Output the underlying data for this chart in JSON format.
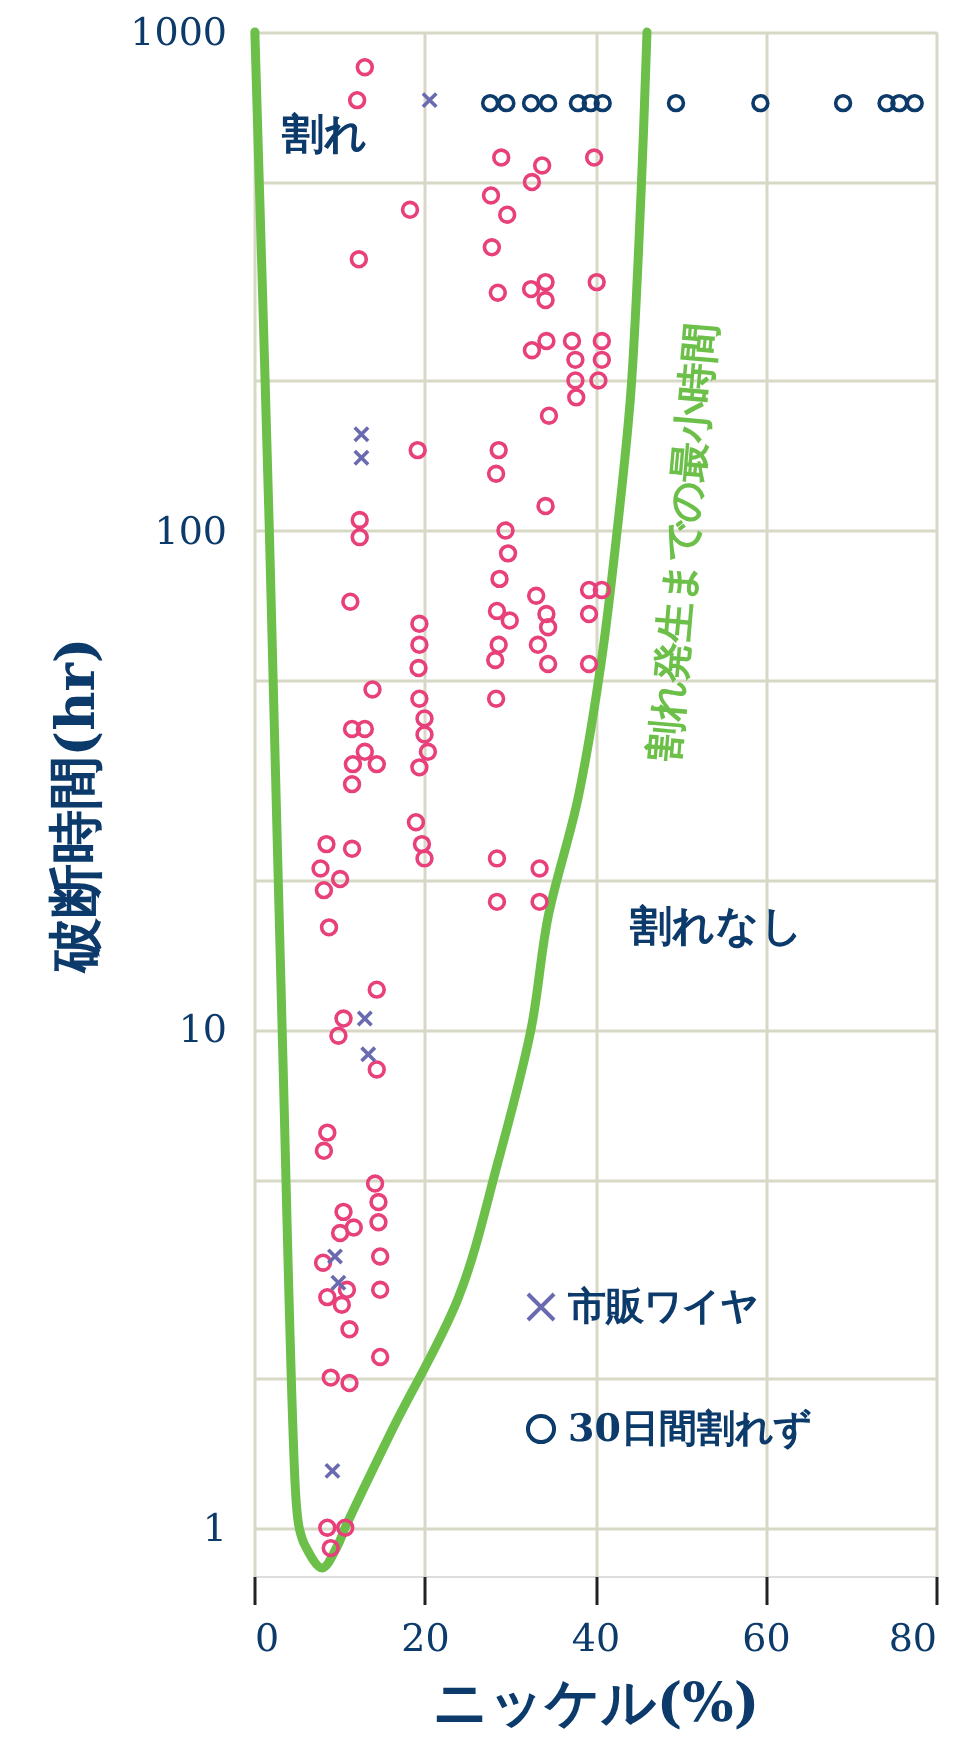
{
  "chart_data": {
    "type": "scatter",
    "xlabel": "ニッケル(%)",
    "ylabel": "破断時間(hr)",
    "xlim": [
      0,
      80
    ],
    "xticks": [
      0,
      20,
      40,
      60,
      80
    ],
    "ylim": [
      0.8,
      1000
    ],
    "yticks": [
      1,
      {
        "value": 2,
        "label": null
      },
      {
        "value": 5,
        "label": null
      },
      10,
      {
        "value": 20,
        "label": null
      },
      {
        "value": 50,
        "label": null
      },
      100,
      {
        "value": 200,
        "label": null
      },
      {
        "value": 500,
        "label": null
      },
      1000
    ],
    "log": "y",
    "grid": true,
    "legend": "bottom right",
    "annotations": [
      "割れ",
      "割れなし"
    ],
    "series": [
      {
        "color": "#e8407a",
        "marker": "circle",
        "x": [
          13.0,
          12.1,
          29.0,
          33.8,
          32.6,
          39.9,
          27.8,
          18.3,
          29.7,
          27.9,
          12.3,
          28.6,
          32.5,
          34.2,
          34.2,
          40.2,
          32.6,
          34.3,
          37.3,
          40.8,
          37.7,
          40.8,
          37.7,
          40.4,
          37.8,
          34.6,
          19.2,
          28.7,
          28.4,
          34.2,
          12.4,
          12.4,
          29.5,
          29.8,
          28.8,
          11.3,
          33.1,
          39.3,
          40.8,
          28.5,
          30.0,
          34.3,
          34.5,
          39.3,
          19.4,
          19.4,
          28.7,
          33.3,
          28.3,
          34.5,
          39.3,
          19.3,
          13.9,
          28.4,
          19.4,
          20.0,
          20.0,
          20.4,
          19.4,
          11.5,
          13.0,
          13.0,
          14.4,
          11.6,
          11.5,
          19.0,
          19.7,
          20.0,
          8.5,
          11.5,
          7.8,
          10.1,
          8.2,
          8.8,
          28.5,
          33.5,
          28.5,
          33.5,
          14.4,
          10.5,
          9.9,
          14.4,
          8.6,
          8.2,
          14.2,
          14.6,
          14.6,
          10.5,
          10.1,
          11.7,
          14.8,
          8.1,
          8.6,
          10.9,
          10.3,
          11.2,
          14.8,
          14.8,
          9.0,
          11.2,
          8.6,
          10.7,
          9.0
        ],
        "values": [
          850,
          730,
          560,
          540,
          500,
          560,
          470,
          440,
          430,
          370,
          350,
          300,
          305,
          315,
          290,
          315,
          230,
          240,
          240,
          240,
          220,
          220,
          200,
          200,
          185,
          170,
          145,
          145,
          130,
          112,
          105,
          97,
          100,
          90,
          80,
          72,
          74,
          76,
          76,
          69,
          66,
          68,
          64,
          68,
          65,
          59,
          59,
          59,
          55,
          54,
          54,
          53,
          48,
          46,
          46,
          42,
          39,
          36,
          33.5,
          40,
          40,
          36,
          34,
          34,
          31,
          26,
          23.5,
          22,
          23.5,
          23,
          21,
          20,
          19,
          16,
          22,
          21,
          18,
          18,
          12,
          10.5,
          9.7,
          8.3,
          6.2,
          5.7,
          4.9,
          4.5,
          4.1,
          4.3,
          3.9,
          4.0,
          3.5,
          3.4,
          2.9,
          3.0,
          2.8,
          2.5,
          3.0,
          2.2,
          2.0,
          1.95,
          1.0,
          1.0,
          0.91
        ]
      },
      {
        "name": "市販ワイヤ",
        "color": "#6a6ab0",
        "marker": "cross",
        "x": [
          20.6,
          12.6,
          12.6,
          13.0,
          13.4,
          9.5,
          9.9,
          9.2
        ],
        "values": [
          730,
          156,
          140,
          10.5,
          8.9,
          3.5,
          3.1,
          1.3
        ]
      },
      {
        "name": "30日間割れず",
        "color": "#0b3a6b",
        "marker": "circle",
        "x": [
          27.7,
          29.6,
          32.5,
          34.5,
          38.0,
          39.5,
          40.9,
          49.5,
          59.4,
          69.1,
          74.2,
          75.7,
          77.5
        ],
        "values": [
          720,
          720,
          720,
          720,
          720,
          720,
          720,
          720,
          720,
          720,
          720,
          720,
          720
        ]
      },
      {
        "name": "割れ発生までの最小時間",
        "type": "line",
        "color": "#6cc04a",
        "marker": "none",
        "x": [
          0.1,
          1.0,
          1.8,
          3.3,
          4.9,
          5.3,
          6.0,
          8.0,
          9.8,
          10.7,
          16.2,
          24.0,
          28.6,
          32.5,
          34.5,
          38.0,
          40.7,
          42.6,
          44.2,
          45.4,
          46.1
        ],
        "values": [
          1000,
          300,
          100,
          10,
          1.16,
          1.0,
          0.92,
          0.83,
          0.92,
          1.0,
          1.57,
          2.9,
          5.4,
          10,
          16.8,
          29,
          54,
          100,
          189,
          474,
          1000
        ]
      }
    ]
  }
}
